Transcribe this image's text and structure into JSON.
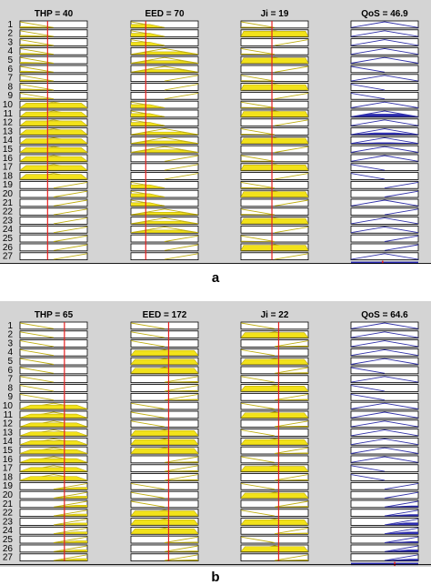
{
  "panels": [
    {
      "label": "a",
      "rule_count": 27,
      "rule_numbers": [
        "1",
        "2",
        "3",
        "4",
        "5",
        "6",
        "7",
        "8",
        "9",
        "10",
        "11",
        "12",
        "13",
        "14",
        "15",
        "16",
        "17",
        "18",
        "19",
        "20",
        "21",
        "22",
        "23",
        "24",
        "25",
        "26",
        "27"
      ],
      "variables": [
        {
          "name": "THP",
          "title": "THP = 40",
          "kind": "input",
          "value_fraction": 0.41,
          "line_color": "#e62020",
          "fill_color": "#f2e21a",
          "stroke_color": "#bfae10",
          "mf_per_rule": [
            "L",
            "L",
            "L",
            "L",
            "L",
            "L",
            "L",
            "L",
            "L",
            "M",
            "M",
            "M",
            "M",
            "M",
            "M",
            "M",
            "M",
            "M",
            "H",
            "H",
            "H",
            "H",
            "H",
            "H",
            "H",
            "H",
            "H"
          ]
        },
        {
          "name": "EED",
          "title": "EED = 70",
          "kind": "input",
          "value_fraction": 0.22,
          "line_color": "#e62020",
          "fill_color": "#f2e21a",
          "stroke_color": "#bfae10",
          "mf_per_rule": [
            "L",
            "L",
            "L",
            "M",
            "M",
            "M",
            "H",
            "H",
            "H",
            "L",
            "L",
            "L",
            "M",
            "M",
            "M",
            "H",
            "H",
            "H",
            "L",
            "L",
            "L",
            "M",
            "M",
            "M",
            "H",
            "H",
            "H"
          ]
        },
        {
          "name": "Ji",
          "title": "Ji = 19",
          "kind": "input",
          "value_fraction": 0.46,
          "line_color": "#e62020",
          "fill_color": "#f2e21a",
          "stroke_color": "#bfae10",
          "mf_per_rule": [
            "L",
            "M",
            "H",
            "L",
            "M",
            "H",
            "L",
            "M",
            "H",
            "L",
            "M",
            "H",
            "L",
            "M",
            "H",
            "L",
            "M",
            "H",
            "L",
            "M",
            "H",
            "L",
            "M",
            "H",
            "L",
            "M",
            "H"
          ]
        },
        {
          "name": "QoS",
          "title": "QoS = 46.9",
          "kind": "output",
          "value_fraction": 0.47,
          "line_color": "#e62020",
          "fill_color": "#2a2ab0",
          "stroke_color": "#3030a8",
          "mf_per_rule": [
            "M",
            "M",
            "M",
            "M",
            "M",
            "L",
            "M",
            "L",
            "L",
            "M",
            "M",
            "M",
            "M",
            "M",
            "M",
            "M",
            "L",
            "L",
            "H",
            "H",
            "M",
            "H",
            "M",
            "M",
            "H",
            "H",
            "M"
          ],
          "active_output": [
            0,
            0,
            0,
            0,
            0,
            0,
            0,
            0,
            0,
            0,
            0.45,
            0,
            0.3,
            0.15,
            0,
            0,
            0,
            0,
            0,
            0,
            0,
            0,
            0,
            0,
            0,
            0,
            0
          ]
        }
      ]
    },
    {
      "label": "b",
      "rule_count": 27,
      "rule_numbers": [
        "1",
        "2",
        "3",
        "4",
        "5",
        "6",
        "7",
        "8",
        "9",
        "10",
        "11",
        "12",
        "13",
        "14",
        "15",
        "16",
        "17",
        "18",
        "19",
        "20",
        "21",
        "22",
        "23",
        "24",
        "25",
        "26",
        "27"
      ],
      "variables": [
        {
          "name": "THP",
          "title": "THP = 65",
          "kind": "input",
          "value_fraction": 0.66,
          "line_color": "#e62020",
          "fill_color": "#f2e21a",
          "stroke_color": "#bfae10",
          "mf_per_rule": [
            "L",
            "L",
            "L",
            "L",
            "L",
            "L",
            "L",
            "L",
            "L",
            "M",
            "M",
            "M",
            "M",
            "M",
            "M",
            "M",
            "M",
            "M",
            "H",
            "H",
            "H",
            "H",
            "H",
            "H",
            "H",
            "H",
            "H"
          ]
        },
        {
          "name": "EED",
          "title": "EED = 172",
          "kind": "input",
          "value_fraction": 0.56,
          "line_color": "#e62020",
          "fill_color": "#f2e21a",
          "stroke_color": "#bfae10",
          "mf_per_rule": [
            "L",
            "L",
            "L",
            "M",
            "M",
            "M",
            "H",
            "H",
            "H",
            "L",
            "L",
            "L",
            "M",
            "M",
            "M",
            "H",
            "H",
            "H",
            "L",
            "L",
            "L",
            "M",
            "M",
            "M",
            "H",
            "H",
            "H"
          ]
        },
        {
          "name": "Ji",
          "title": "Ji = 22",
          "kind": "input",
          "value_fraction": 0.56,
          "line_color": "#e62020",
          "fill_color": "#f2e21a",
          "stroke_color": "#bfae10",
          "mf_per_rule": [
            "L",
            "M",
            "H",
            "L",
            "M",
            "H",
            "L",
            "M",
            "H",
            "L",
            "M",
            "H",
            "L",
            "M",
            "H",
            "L",
            "M",
            "H",
            "L",
            "M",
            "H",
            "L",
            "M",
            "H",
            "L",
            "M",
            "H"
          ]
        },
        {
          "name": "QoS",
          "title": "QoS = 64.6",
          "kind": "output",
          "value_fraction": 0.65,
          "line_color": "#e62020",
          "fill_color": "#2a2ab0",
          "stroke_color": "#3030a8",
          "mf_per_rule": [
            "M",
            "M",
            "M",
            "M",
            "M",
            "L",
            "M",
            "L",
            "L",
            "M",
            "M",
            "M",
            "M",
            "M",
            "M",
            "M",
            "L",
            "L",
            "H",
            "H",
            "H",
            "H",
            "H",
            "H",
            "H",
            "H",
            "H"
          ],
          "active_output": [
            0,
            0,
            0,
            0,
            0,
            0,
            0,
            0,
            0,
            0,
            0,
            0,
            0,
            0,
            0,
            0,
            0,
            0,
            0,
            0,
            0.2,
            0.25,
            0.35,
            0.3,
            0.2,
            0.3,
            0.25
          ]
        }
      ]
    }
  ]
}
